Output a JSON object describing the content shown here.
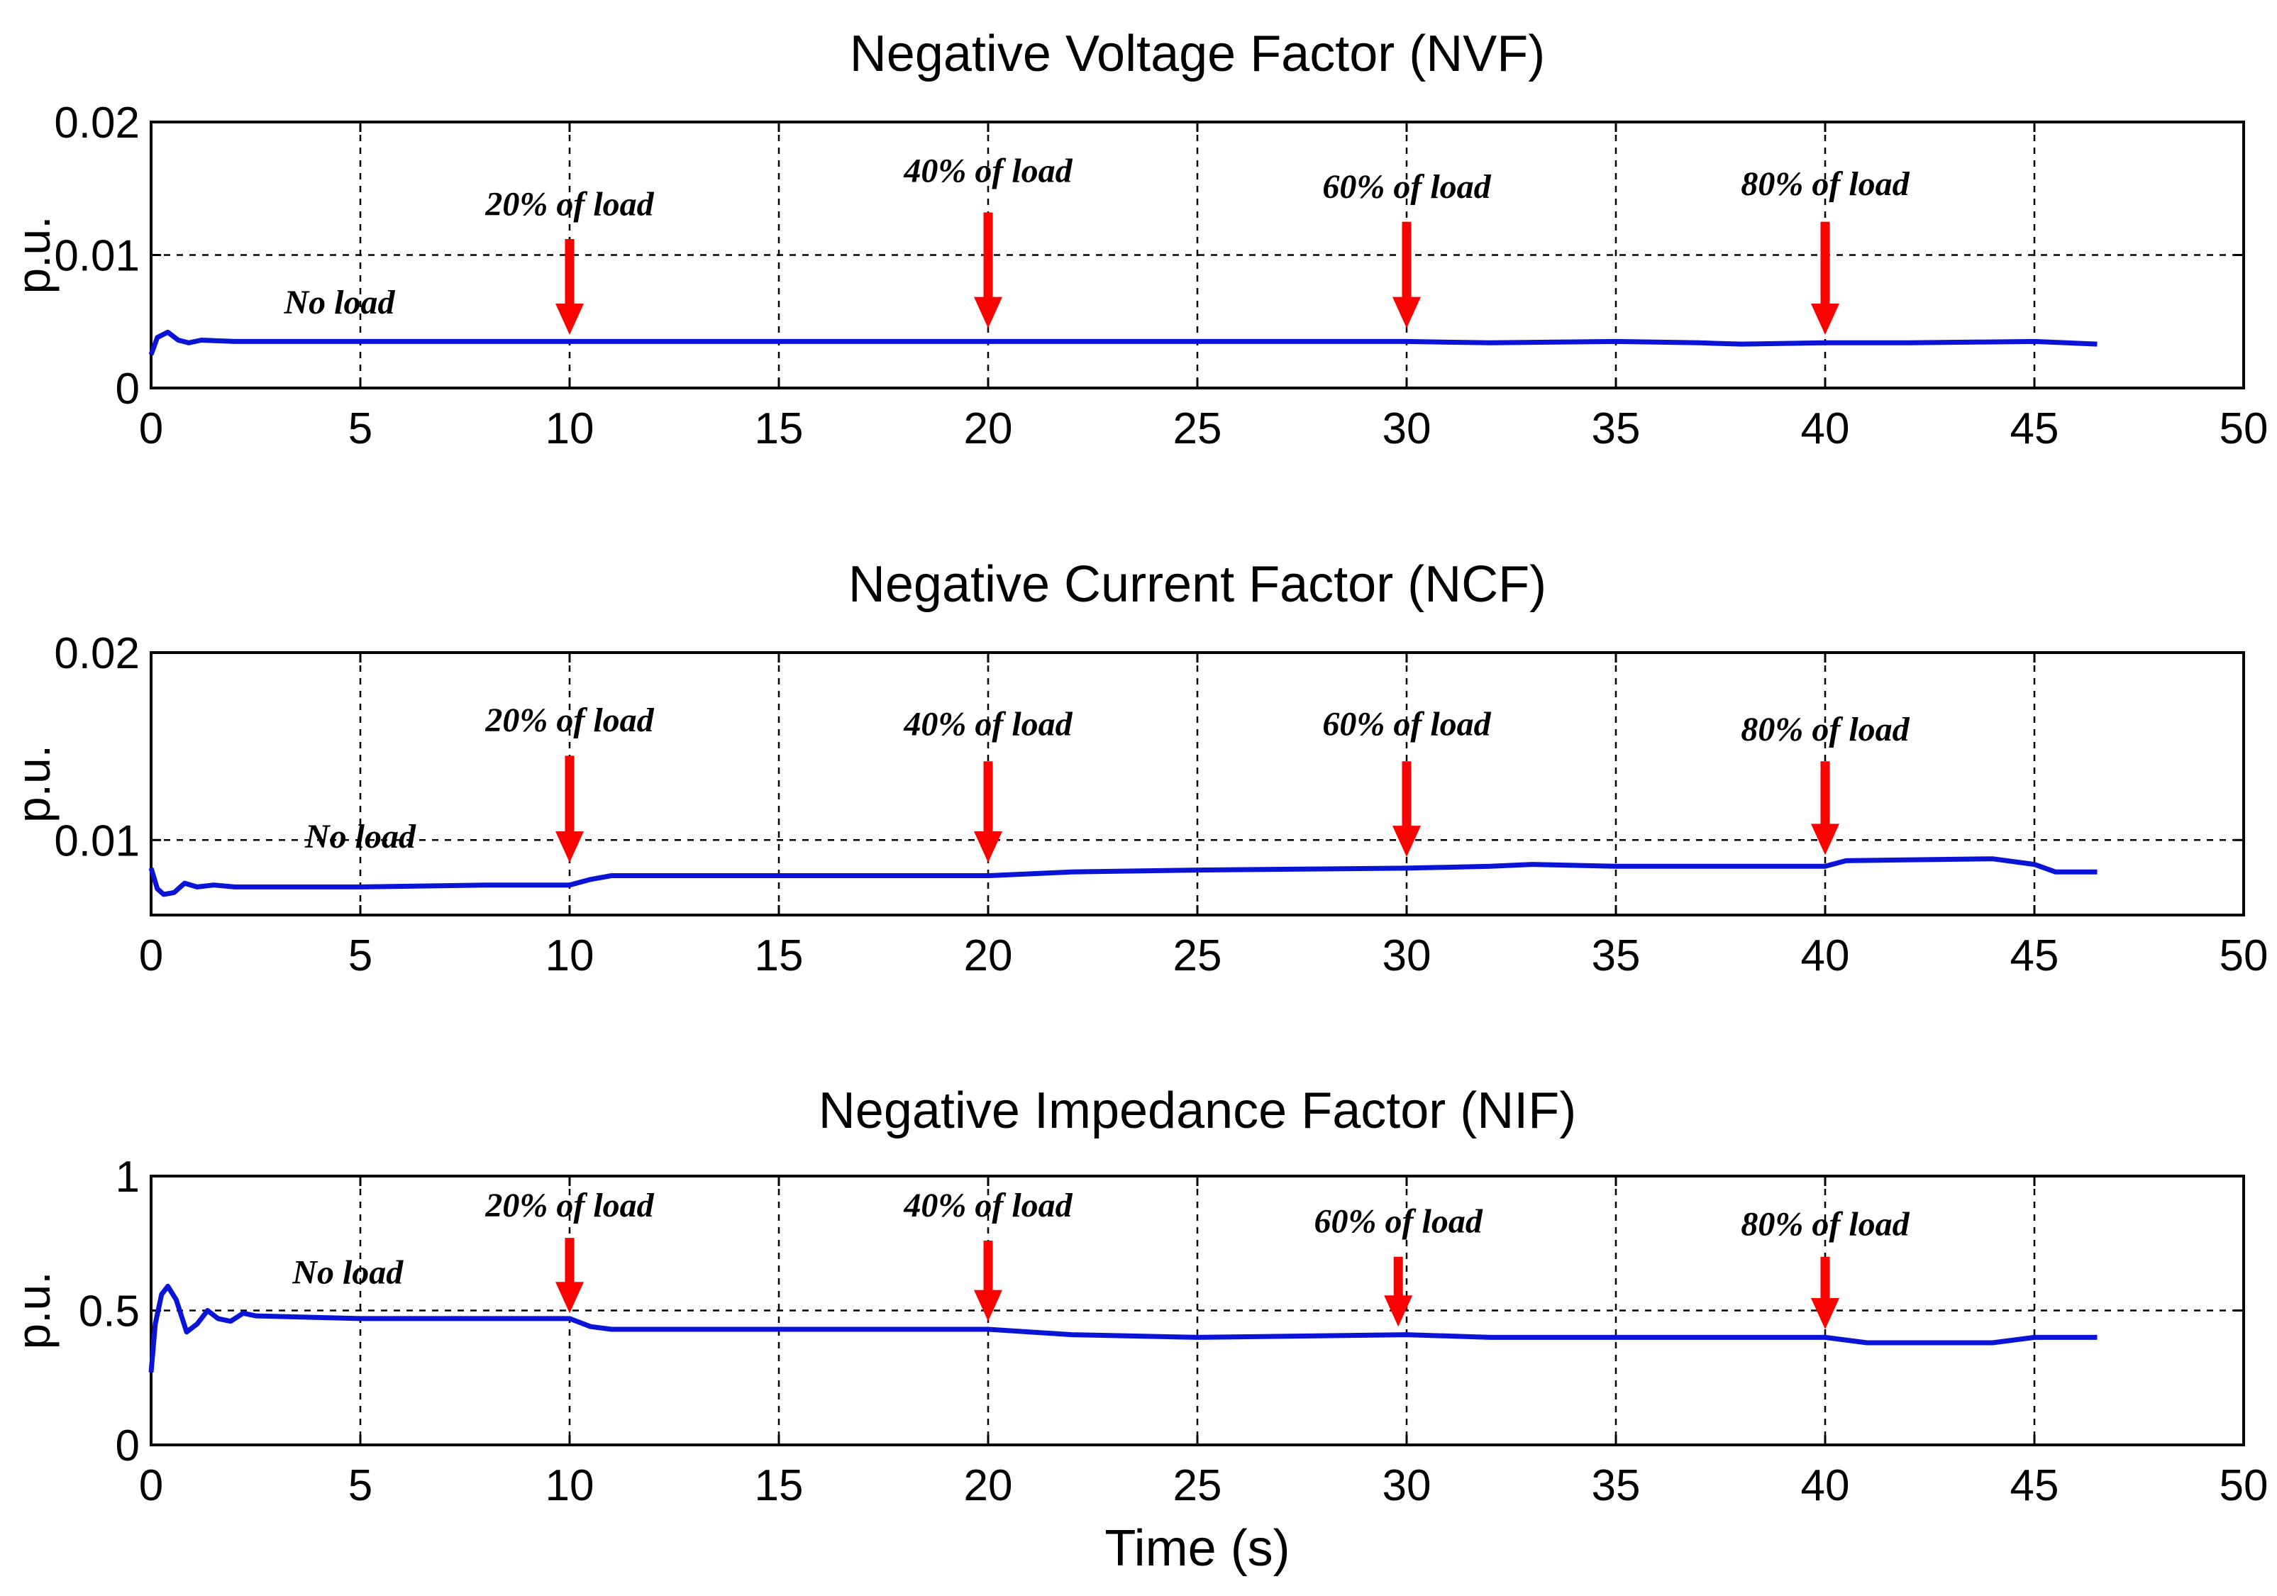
{
  "chart_data": [
    {
      "type": "line",
      "title": "Negative Voltage Factor (NVF)",
      "xlabel": "",
      "ylabel": "p.u.",
      "xlim": [
        0,
        50
      ],
      "ylim": [
        0,
        0.02
      ],
      "xticks": [
        0,
        5,
        10,
        15,
        20,
        25,
        30,
        35,
        40,
        45,
        50
      ],
      "yticks": [
        0,
        0.01,
        0.02
      ],
      "xtick_labels": [
        "0",
        "5",
        "10",
        "15",
        "20",
        "25",
        "30",
        "35",
        "40",
        "45",
        "50"
      ],
      "ytick_labels": [
        "0",
        "0.01",
        "0.02"
      ],
      "grid": true,
      "series": [
        {
          "name": "NVF",
          "color": "#0a14d6",
          "x": [
            0,
            0.15,
            0.4,
            0.65,
            0.9,
            1.2,
            2,
            5,
            10,
            15,
            20,
            25,
            30,
            32,
            35,
            37,
            38,
            40,
            42,
            45,
            46.5
          ],
          "y": [
            0.0025,
            0.0038,
            0.0042,
            0.0036,
            0.0034,
            0.0036,
            0.0035,
            0.0035,
            0.0035,
            0.0035,
            0.0035,
            0.0035,
            0.0035,
            0.0034,
            0.0035,
            0.0034,
            0.0033,
            0.0034,
            0.0034,
            0.0035,
            0.0033
          ]
        }
      ],
      "annotations": [
        {
          "text": "No load",
          "x": 4.5,
          "y": 0.0056,
          "arrow": false
        },
        {
          "text": "20% of load",
          "x": 10,
          "y": 0.013,
          "arrow": true,
          "arrow_from": 0.0112,
          "arrow_to": 0.004
        },
        {
          "text": "40% of load",
          "x": 20,
          "y": 0.0155,
          "arrow": true,
          "arrow_from": 0.0132,
          "arrow_to": 0.0045
        },
        {
          "text": "60% of load",
          "x": 30,
          "y": 0.0143,
          "arrow": true,
          "arrow_from": 0.0125,
          "arrow_to": 0.0045
        },
        {
          "text": "80% of load",
          "x": 40,
          "y": 0.0145,
          "arrow": true,
          "arrow_from": 0.0125,
          "arrow_to": 0.004
        }
      ]
    },
    {
      "type": "line",
      "title": "Negative Current Factor (NCF)",
      "xlabel": "",
      "ylabel": "p.u.",
      "xlim": [
        0,
        50
      ],
      "ylim": [
        0.006,
        0.02
      ],
      "xticks": [
        0,
        5,
        10,
        15,
        20,
        25,
        30,
        35,
        40,
        45,
        50
      ],
      "yticks": [
        0.01,
        0.02
      ],
      "xtick_labels": [
        "0",
        "5",
        "10",
        "15",
        "20",
        "25",
        "30",
        "35",
        "40",
        "45",
        "50"
      ],
      "ytick_labels": [
        "0.01",
        "0.02"
      ],
      "grid": true,
      "series": [
        {
          "name": "NCF",
          "color": "#0a14d6",
          "x": [
            0,
            0.15,
            0.3,
            0.55,
            0.8,
            1.1,
            1.5,
            2,
            5,
            8,
            10,
            10.5,
            11,
            15,
            20,
            22,
            25,
            30,
            32,
            33,
            35,
            38,
            40,
            40.5,
            44,
            45,
            45.5,
            46.5
          ],
          "y": [
            0.0085,
            0.0074,
            0.0071,
            0.0072,
            0.0077,
            0.0075,
            0.0076,
            0.0075,
            0.0075,
            0.0076,
            0.0076,
            0.0079,
            0.0081,
            0.0081,
            0.0081,
            0.0083,
            0.0084,
            0.0085,
            0.0086,
            0.0087,
            0.0086,
            0.0086,
            0.0086,
            0.0089,
            0.009,
            0.0087,
            0.0083,
            0.0083
          ]
        }
      ],
      "annotations": [
        {
          "text": "No load",
          "x": 5,
          "y": 0.0096,
          "arrow": false
        },
        {
          "text": "20% of load",
          "x": 10,
          "y": 0.0158,
          "arrow": true,
          "arrow_from": 0.0145,
          "arrow_to": 0.0088
        },
        {
          "text": "40% of load",
          "x": 20,
          "y": 0.0156,
          "arrow": true,
          "arrow_from": 0.0142,
          "arrow_to": 0.0088
        },
        {
          "text": "60% of load",
          "x": 30,
          "y": 0.0156,
          "arrow": true,
          "arrow_from": 0.0142,
          "arrow_to": 0.0091
        },
        {
          "text": "80% of load",
          "x": 40,
          "y": 0.0153,
          "arrow": true,
          "arrow_from": 0.0142,
          "arrow_to": 0.0092
        }
      ]
    },
    {
      "type": "line",
      "title": "Negative Impedance Factor (NIF)",
      "xlabel": "Time (s)",
      "ylabel": "p.u.",
      "xlim": [
        0,
        50
      ],
      "ylim": [
        0,
        1
      ],
      "xticks": [
        0,
        5,
        10,
        15,
        20,
        25,
        30,
        35,
        40,
        45,
        50
      ],
      "yticks": [
        0,
        0.5,
        1
      ],
      "xtick_labels": [
        "0",
        "5",
        "10",
        "15",
        "20",
        "25",
        "30",
        "35",
        "40",
        "45",
        "50"
      ],
      "ytick_labels": [
        "0",
        "0.5",
        "1"
      ],
      "grid": true,
      "series": [
        {
          "name": "NIF",
          "color": "#0a14d6",
          "x": [
            0,
            0.1,
            0.25,
            0.4,
            0.6,
            0.85,
            1.1,
            1.35,
            1.6,
            1.9,
            2.2,
            2.5,
            5,
            8,
            10,
            10.5,
            11,
            15,
            20,
            22,
            25,
            30,
            32,
            35,
            40,
            41,
            44,
            45,
            46.5
          ],
          "y": [
            0.27,
            0.45,
            0.56,
            0.59,
            0.54,
            0.42,
            0.45,
            0.5,
            0.47,
            0.46,
            0.49,
            0.48,
            0.47,
            0.47,
            0.47,
            0.44,
            0.43,
            0.43,
            0.43,
            0.41,
            0.4,
            0.41,
            0.4,
            0.4,
            0.4,
            0.38,
            0.38,
            0.4,
            0.4
          ]
        }
      ],
      "annotations": [
        {
          "text": "No load",
          "x": 4.7,
          "y": 0.6,
          "arrow": false
        },
        {
          "text": "20% of load",
          "x": 10,
          "y": 0.85,
          "arrow": true,
          "arrow_from": 0.77,
          "arrow_to": 0.49
        },
        {
          "text": "40% of load",
          "x": 20,
          "y": 0.85,
          "arrow": true,
          "arrow_from": 0.76,
          "arrow_to": 0.46
        },
        {
          "text": "60% of load",
          "x": 29.8,
          "y": 0.79,
          "arrow": true,
          "arrow_from": 0.7,
          "arrow_to": 0.44
        },
        {
          "text": "80% of load",
          "x": 40,
          "y": 0.78,
          "arrow": true,
          "arrow_from": 0.7,
          "arrow_to": 0.43
        }
      ]
    }
  ]
}
